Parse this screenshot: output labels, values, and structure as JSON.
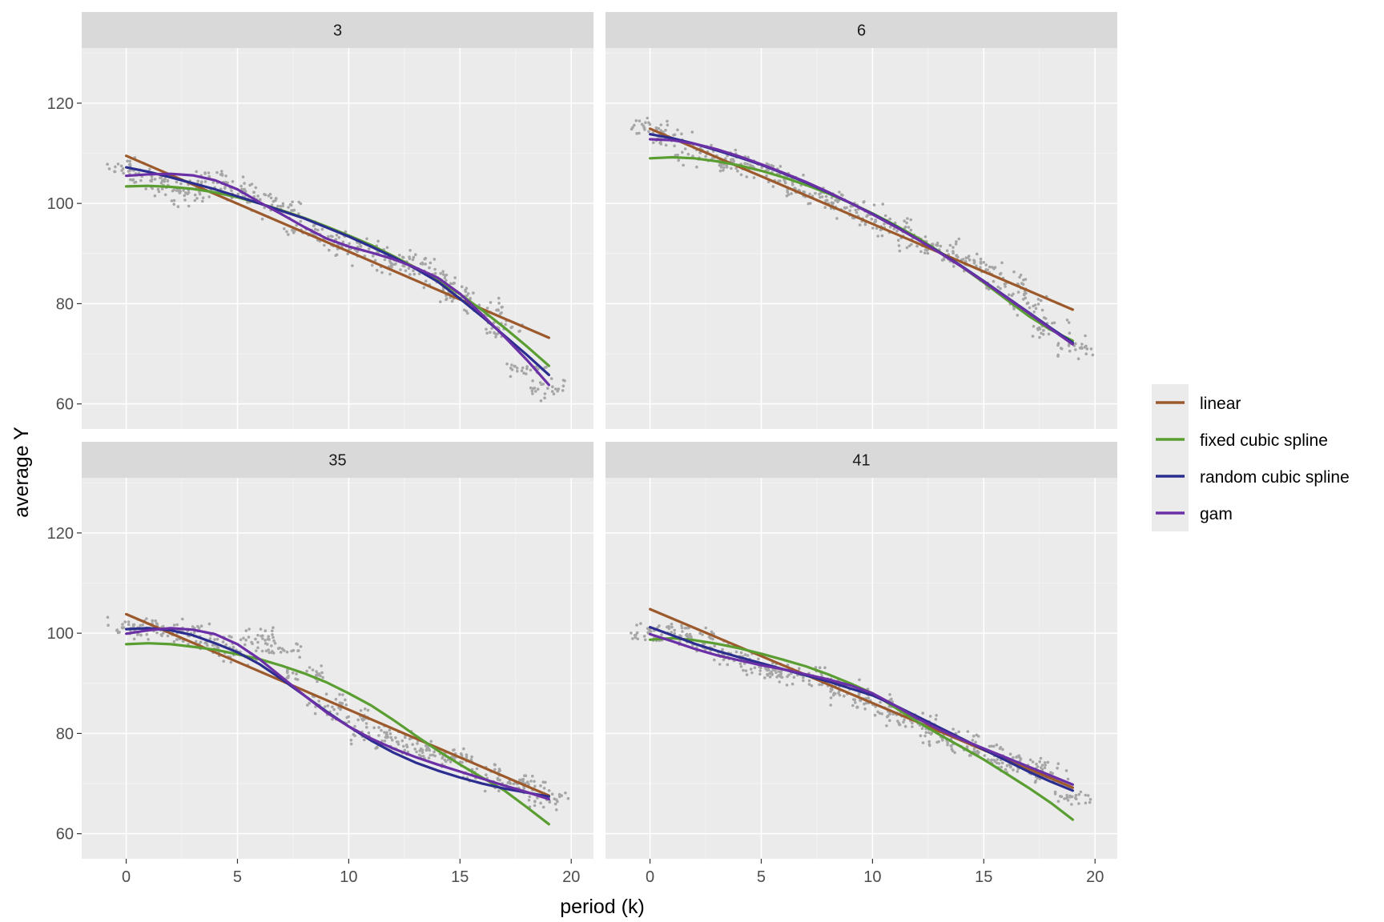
{
  "chart_data": {
    "type": "line",
    "xlabel": "period (k)",
    "ylabel": "average Y",
    "xlim": [
      -2,
      21
    ],
    "ylim": [
      55,
      131
    ],
    "x_ticks": [
      0,
      5,
      10,
      15,
      20
    ],
    "y_ticks": [
      60,
      80,
      100,
      120
    ],
    "grid": true,
    "legend_position": "right",
    "point_color": "#a6a6a6",
    "legend": [
      {
        "key": "linear",
        "label": "linear",
        "color": "#9c5a2c"
      },
      {
        "key": "fixed",
        "label": "fixed cubic spline",
        "color": "#5a9e32"
      },
      {
        "key": "random",
        "label": "random cubic spline",
        "color": "#2b2d8f"
      },
      {
        "key": "gam",
        "label": "gam",
        "color": "#6b2fa6"
      }
    ],
    "panels": [
      {
        "label": "3",
        "points_center": [
          [
            0,
            107
          ],
          [
            1,
            105
          ],
          [
            2,
            103
          ],
          [
            3,
            102
          ],
          [
            4,
            105
          ],
          [
            5,
            103
          ],
          [
            6,
            101
          ],
          [
            7,
            99
          ],
          [
            8,
            95
          ],
          [
            9,
            93
          ],
          [
            10,
            91
          ],
          [
            11,
            90
          ],
          [
            12,
            88
          ],
          [
            13,
            88
          ],
          [
            14,
            85
          ],
          [
            15,
            82
          ],
          [
            16,
            79
          ],
          [
            17,
            75
          ],
          [
            18,
            67
          ],
          [
            19,
            63
          ]
        ],
        "series": {
          "linear": {
            "x": [
              0,
              19
            ],
            "y": [
              109.5,
              73.2
            ]
          },
          "fixed": {
            "x": [
              0,
              1,
              2,
              3,
              4,
              5,
              6,
              7,
              8,
              9,
              10,
              11,
              12,
              13,
              14,
              15,
              16,
              17,
              18,
              19
            ],
            "y": [
              103.4,
              103.5,
              103.3,
              102.9,
              102.2,
              101.2,
              100.0,
              98.6,
              97.1,
              95.4,
              93.6,
              91.7,
              89.5,
              87.2,
              84.7,
              81.9,
              78.7,
              75.2,
              71.5,
              67.6
            ]
          },
          "random": {
            "x": [
              0,
              1,
              2,
              3,
              4,
              5,
              6,
              7,
              8,
              9,
              10,
              11,
              12,
              13,
              14,
              15,
              16,
              17,
              18,
              19
            ],
            "y": [
              107.2,
              106.3,
              105.2,
              104.0,
              102.8,
              101.4,
              100.0,
              98.5,
              97.0,
              95.2,
              93.4,
              91.4,
              89.3,
              87.0,
              84.4,
              81.0,
              77.4,
              73.6,
              69.8,
              65.8
            ]
          },
          "gam": {
            "x": [
              0,
              1,
              2,
              3,
              4,
              5,
              6,
              7,
              8,
              9,
              10,
              11,
              12,
              13,
              14,
              15,
              16,
              17,
              18,
              19
            ],
            "y": [
              105.5,
              105.8,
              105.9,
              105.6,
              104.6,
              102.8,
              100.2,
              97.8,
              95.3,
              93.0,
              91.4,
              90.2,
              88.9,
              87.2,
              85.2,
              82.0,
              77.8,
              73.4,
              68.8,
              63.8
            ]
          }
        }
      },
      {
        "label": "6",
        "points_center": [
          [
            0,
            115
          ],
          [
            1,
            113
          ],
          [
            2,
            110
          ],
          [
            3,
            109
          ],
          [
            4,
            108
          ],
          [
            5,
            107
          ],
          [
            6,
            105
          ],
          [
            7,
            103
          ],
          [
            8,
            101
          ],
          [
            9,
            99
          ],
          [
            10,
            97
          ],
          [
            11,
            95
          ],
          [
            12,
            92
          ],
          [
            13,
            91
          ],
          [
            14,
            89
          ],
          [
            15,
            87
          ],
          [
            16,
            84
          ],
          [
            17,
            80
          ],
          [
            18,
            75
          ],
          [
            19,
            71
          ]
        ],
        "series": {
          "linear": {
            "x": [
              0,
              19
            ],
            "y": [
              114.9,
              78.8
            ]
          },
          "fixed": {
            "x": [
              0,
              1,
              2,
              3,
              4,
              5,
              6,
              7,
              8,
              9,
              10,
              11,
              12,
              13,
              14,
              15,
              16,
              17,
              18,
              19
            ],
            "y": [
              109.0,
              109.2,
              109.0,
              108.4,
              107.6,
              106.5,
              105.2,
              103.7,
              102.0,
              100.1,
              98.0,
              95.7,
              93.2,
              90.4,
              87.4,
              84.2,
              80.9,
              77.6,
              74.8,
              72.6
            ]
          },
          "random": {
            "x": [
              0,
              1,
              2,
              3,
              4,
              5,
              6,
              7,
              8,
              9,
              10,
              11,
              12,
              13,
              14,
              15,
              16,
              17,
              18,
              19
            ],
            "y": [
              113.8,
              113.0,
              111.9,
              110.6,
              109.2,
              107.7,
              106.0,
              104.2,
              102.2,
              100.1,
              97.9,
              95.5,
              92.9,
              90.3,
              87.5,
              84.5,
              81.4,
              78.3,
              75.2,
              72.2
            ]
          },
          "gam": {
            "x": [
              0,
              1,
              2,
              3,
              4,
              5,
              6,
              7,
              8,
              9,
              10,
              11,
              12,
              13,
              14,
              15,
              16,
              17,
              18,
              19
            ],
            "y": [
              112.8,
              112.6,
              111.9,
              110.8,
              109.4,
              107.8,
              106.1,
              104.3,
              102.3,
              100.1,
              97.8,
              95.4,
              92.9,
              90.2,
              87.4,
              84.4,
              81.3,
              78.2,
              75.0,
              71.9
            ]
          }
        }
      },
      {
        "label": "35",
        "points_center": [
          [
            0,
            101
          ],
          [
            1,
            101
          ],
          [
            2,
            100
          ],
          [
            3,
            100
          ],
          [
            4,
            98
          ],
          [
            5,
            96
          ],
          [
            6,
            99
          ],
          [
            7,
            97
          ],
          [
            8,
            92
          ],
          [
            9,
            86
          ],
          [
            10,
            83
          ],
          [
            11,
            80
          ],
          [
            12,
            79
          ],
          [
            13,
            77
          ],
          [
            14,
            76
          ],
          [
            15,
            75
          ],
          [
            16,
            72
          ],
          [
            17,
            70
          ],
          [
            18,
            70
          ],
          [
            19,
            67
          ]
        ],
        "series": {
          "linear": {
            "x": [
              0,
              19
            ],
            "y": [
              103.8,
              67.6
            ]
          },
          "fixed": {
            "x": [
              0,
              1,
              2,
              3,
              4,
              5,
              6,
              7,
              8,
              9,
              10,
              11,
              12,
              13,
              14,
              15,
              16,
              17,
              18,
              19
            ],
            "y": [
              97.8,
              98.0,
              97.8,
              97.3,
              96.7,
              95.8,
              94.8,
              93.5,
              92.0,
              90.2,
              88.0,
              85.6,
              82.7,
              79.6,
              76.6,
              73.8,
              71.2,
              68.6,
              65.3,
              61.9
            ]
          },
          "random": {
            "x": [
              0,
              1,
              2,
              3,
              4,
              5,
              6,
              7,
              8,
              9,
              10,
              11,
              12,
              13,
              14,
              15,
              16,
              17,
              18,
              19
            ],
            "y": [
              100.8,
              101.0,
              100.6,
              99.6,
              98.0,
              96.2,
              93.8,
              90.8,
              87.6,
              84.4,
              81.4,
              78.6,
              76.2,
              74.2,
              72.6,
              71.2,
              70.0,
              69.0,
              68.2,
              67.4
            ]
          },
          "gam": {
            "x": [
              0,
              1,
              2,
              3,
              4,
              5,
              6,
              7,
              8,
              9,
              10,
              11,
              12,
              13,
              14,
              15,
              16,
              17,
              18,
              19
            ],
            "y": [
              99.9,
              100.6,
              101.0,
              100.7,
              99.8,
              97.8,
              94.8,
              91.2,
              87.6,
              84.2,
              81.4,
              79.0,
              77.0,
              75.3,
              73.8,
              72.4,
              71.0,
              69.6,
              68.3,
              66.9
            ]
          }
        }
      },
      {
        "label": "41",
        "points_center": [
          [
            0,
            100
          ],
          [
            1,
            100
          ],
          [
            2,
            99
          ],
          [
            3,
            97
          ],
          [
            4,
            95
          ],
          [
            5,
            93
          ],
          [
            6,
            92
          ],
          [
            7,
            92
          ],
          [
            8,
            90
          ],
          [
            9,
            88
          ],
          [
            10,
            86
          ],
          [
            11,
            84
          ],
          [
            12,
            82
          ],
          [
            13,
            80
          ],
          [
            14,
            78
          ],
          [
            15,
            77
          ],
          [
            16,
            74
          ],
          [
            17,
            74
          ],
          [
            18,
            72
          ],
          [
            19,
            67
          ]
        ],
        "series": {
          "linear": {
            "x": [
              0,
              19
            ],
            "y": [
              104.8,
              69.2
            ]
          },
          "fixed": {
            "x": [
              0,
              1,
              2,
              3,
              4,
              5,
              6,
              7,
              8,
              9,
              10,
              11,
              12,
              13,
              14,
              15,
              16,
              17,
              18,
              19
            ],
            "y": [
              98.7,
              99.0,
              98.6,
              97.9,
              97.0,
              95.9,
              94.7,
              93.4,
              91.8,
              90.0,
              88.0,
              85.2,
              82.4,
              79.8,
              77.3,
              74.8,
              72.0,
              69.2,
              66.2,
              62.8
            ]
          },
          "random": {
            "x": [
              0,
              1,
              2,
              3,
              4,
              5,
              6,
              7,
              8,
              9,
              10,
              11,
              12,
              13,
              14,
              15,
              16,
              17,
              18,
              19
            ],
            "y": [
              101.2,
              99.6,
              97.9,
              96.5,
              95.2,
              94.0,
              92.8,
              91.6,
              90.4,
              89.0,
              87.6,
              85.6,
              83.4,
              81.2,
              79.0,
              76.8,
              74.6,
              72.4,
              70.4,
              68.6
            ]
          },
          "gam": {
            "x": [
              0,
              1,
              2,
              3,
              4,
              5,
              6,
              7,
              8,
              9,
              10,
              11,
              12,
              13,
              14,
              15,
              16,
              17,
              18,
              19
            ],
            "y": [
              99.8,
              98.4,
              96.9,
              95.6,
              94.6,
              93.6,
              92.8,
              91.8,
              90.8,
              89.6,
              88.0,
              85.6,
              83.0,
              80.8,
              78.8,
              77.0,
              75.2,
              73.4,
              71.6,
              69.8
            ]
          }
        }
      }
    ]
  }
}
